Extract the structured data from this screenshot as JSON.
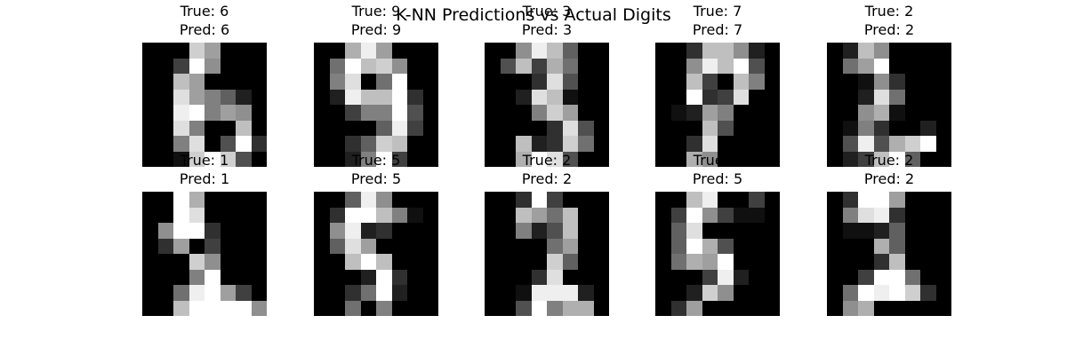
{
  "chart_data": {
    "type": "heatmap",
    "title": "K-NN Predictions vs Actual Digits",
    "colormap": "gray",
    "value_range": [
      0,
      16
    ],
    "grid": false,
    "layout": "2 rows x 5 columns",
    "panels": [
      {
        "true_label": "True: 6",
        "pred_label": "Pred: 6",
        "pixels": [
          [
            0,
            0,
            0,
            13,
            10,
            0,
            0,
            0
          ],
          [
            0,
            0,
            4,
            16,
            9,
            0,
            0,
            0
          ],
          [
            0,
            0,
            12,
            10,
            0,
            0,
            0,
            0
          ],
          [
            0,
            0,
            14,
            10,
            8,
            6,
            2,
            0
          ],
          [
            0,
            0,
            15,
            16,
            8,
            10,
            9,
            0
          ],
          [
            0,
            0,
            14,
            8,
            0,
            0,
            12,
            0
          ],
          [
            0,
            0,
            8,
            14,
            0,
            5,
            16,
            3
          ],
          [
            0,
            0,
            1,
            13,
            16,
            13,
            5,
            0
          ]
        ]
      },
      {
        "true_label": "True: 9",
        "pred_label": "Pred: 9",
        "pixels": [
          [
            0,
            0,
            11,
            15,
            10,
            0,
            0,
            0
          ],
          [
            0,
            7,
            16,
            12,
            13,
            9,
            0,
            0
          ],
          [
            0,
            8,
            14,
            0,
            7,
            16,
            0,
            0
          ],
          [
            0,
            2,
            15,
            12,
            12,
            16,
            3,
            0
          ],
          [
            0,
            0,
            4,
            8,
            8,
            16,
            5,
            0
          ],
          [
            0,
            0,
            0,
            0,
            6,
            15,
            4,
            0
          ],
          [
            0,
            0,
            3,
            6,
            13,
            12,
            0,
            0
          ],
          [
            0,
            0,
            2,
            8,
            16,
            4,
            0,
            0
          ]
        ]
      },
      {
        "true_label": "True: 3",
        "pred_label": "Pred: 3",
        "pixels": [
          [
            0,
            0,
            9,
            15,
            12,
            6,
            0,
            0
          ],
          [
            0,
            5,
            12,
            4,
            11,
            7,
            0,
            0
          ],
          [
            0,
            0,
            0,
            3,
            14,
            5,
            0,
            0
          ],
          [
            0,
            0,
            2,
            14,
            12,
            1,
            0,
            0
          ],
          [
            0,
            0,
            0,
            8,
            13,
            10,
            0,
            0
          ],
          [
            0,
            0,
            0,
            0,
            3,
            14,
            5,
            0
          ],
          [
            0,
            0,
            12,
            2,
            3,
            13,
            7,
            0
          ],
          [
            0,
            0,
            11,
            16,
            14,
            5,
            0,
            0
          ]
        ]
      },
      {
        "true_label": "True: 7",
        "pred_label": "Pred: 7",
        "pixels": [
          [
            0,
            0,
            3,
            12,
            12,
            9,
            2,
            0
          ],
          [
            0,
            0,
            9,
            15,
            12,
            16,
            5,
            0
          ],
          [
            0,
            0,
            12,
            4,
            0,
            12,
            8,
            0
          ],
          [
            0,
            0,
            16,
            3,
            4,
            14,
            0,
            0
          ],
          [
            0,
            1,
            2,
            10,
            8,
            0,
            0,
            0
          ],
          [
            0,
            0,
            0,
            12,
            5,
            0,
            0,
            0
          ],
          [
            0,
            0,
            3,
            14,
            0,
            0,
            0,
            0
          ],
          [
            0,
            0,
            11,
            9,
            0,
            0,
            0,
            0
          ]
        ]
      },
      {
        "true_label": "True: 2",
        "pred_label": "Pred: 2",
        "pixels": [
          [
            0,
            2,
            12,
            9,
            0,
            0,
            0,
            0
          ],
          [
            0,
            7,
            10,
            16,
            0,
            0,
            0,
            0
          ],
          [
            0,
            0,
            1,
            9,
            3,
            0,
            0,
            0
          ],
          [
            0,
            0,
            2,
            14,
            7,
            0,
            0,
            0
          ],
          [
            0,
            0,
            9,
            11,
            1,
            0,
            0,
            0
          ],
          [
            0,
            1,
            8,
            3,
            0,
            0,
            2,
            0
          ],
          [
            0,
            5,
            15,
            5,
            11,
            13,
            16,
            0
          ],
          [
            0,
            2,
            4,
            12,
            16,
            6,
            0,
            0
          ]
        ]
      },
      {
        "true_label": "True: 1",
        "pred_label": "Pred: 1",
        "pixels": [
          [
            0,
            0,
            16,
            11,
            0,
            0,
            0,
            0
          ],
          [
            0,
            0,
            16,
            14,
            0,
            0,
            0,
            0
          ],
          [
            0,
            9,
            16,
            16,
            3,
            0,
            0,
            0
          ],
          [
            0,
            3,
            10,
            0,
            4,
            0,
            0,
            0
          ],
          [
            0,
            0,
            0,
            13,
            9,
            0,
            0,
            0
          ],
          [
            0,
            0,
            0,
            8,
            16,
            0,
            0,
            0
          ],
          [
            0,
            0,
            7,
            15,
            16,
            10,
            4,
            0
          ],
          [
            0,
            0,
            12,
            16,
            16,
            16,
            16,
            9
          ]
        ]
      },
      {
        "true_label": "True: 5",
        "pred_label": "Pred: 5",
        "pixels": [
          [
            0,
            0,
            6,
            15,
            9,
            0,
            0,
            0
          ],
          [
            0,
            3,
            16,
            16,
            12,
            8,
            1,
            0
          ],
          [
            0,
            9,
            15,
            2,
            3,
            0,
            0,
            0
          ],
          [
            0,
            6,
            14,
            10,
            0,
            0,
            0,
            0
          ],
          [
            0,
            0,
            12,
            16,
            12,
            0,
            0,
            0
          ],
          [
            0,
            0,
            0,
            2,
            16,
            3,
            0,
            0
          ],
          [
            0,
            0,
            3,
            7,
            16,
            2,
            0,
            0
          ],
          [
            0,
            0,
            7,
            0,
            8,
            0,
            0,
            0
          ]
        ]
      },
      {
        "true_label": "True: 2",
        "pred_label": "Pred: 2",
        "pixels": [
          [
            0,
            0,
            3,
            16,
            4,
            0,
            0,
            0
          ],
          [
            0,
            0,
            12,
            10,
            7,
            12,
            0,
            0
          ],
          [
            0,
            0,
            8,
            2,
            5,
            12,
            0,
            0
          ],
          [
            0,
            0,
            0,
            0,
            7,
            10,
            0,
            0
          ],
          [
            0,
            0,
            0,
            0,
            13,
            6,
            0,
            0
          ],
          [
            0,
            0,
            0,
            3,
            14,
            0,
            0,
            0
          ],
          [
            0,
            0,
            1,
            15,
            15,
            15,
            2,
            0
          ],
          [
            0,
            0,
            5,
            16,
            8,
            11,
            11,
            0
          ]
        ]
      },
      {
        "true_label": "True: 5",
        "pred_label": "Pred: 5",
        "pixels": [
          [
            0,
            0,
            12,
            15,
            0,
            0,
            4,
            0
          ],
          [
            0,
            4,
            16,
            9,
            4,
            1,
            1,
            0
          ],
          [
            0,
            6,
            14,
            0,
            0,
            0,
            0,
            0
          ],
          [
            0,
            6,
            16,
            11,
            5,
            0,
            0,
            0
          ],
          [
            0,
            7,
            11,
            10,
            16,
            0,
            0,
            0
          ],
          [
            0,
            0,
            0,
            4,
            15,
            2,
            0,
            0
          ],
          [
            0,
            0,
            2,
            13,
            9,
            0,
            0,
            0
          ],
          [
            0,
            3,
            10,
            0,
            0,
            0,
            0,
            0
          ]
        ]
      },
      {
        "true_label": "True: 2",
        "pred_label": "Pred: 2",
        "pixels": [
          [
            0,
            3,
            16,
            16,
            10,
            0,
            0,
            0
          ],
          [
            0,
            8,
            14,
            15,
            3,
            0,
            0,
            0
          ],
          [
            0,
            1,
            1,
            2,
            6,
            0,
            0,
            0
          ],
          [
            0,
            0,
            0,
            11,
            6,
            0,
            0,
            0
          ],
          [
            0,
            0,
            0,
            3,
            12,
            0,
            0,
            0
          ],
          [
            0,
            0,
            4,
            16,
            16,
            7,
            0,
            0
          ],
          [
            0,
            7,
            16,
            15,
            16,
            13,
            3,
            0
          ],
          [
            0,
            9,
            11,
            0,
            0,
            0,
            0,
            0
          ]
        ]
      }
    ]
  }
}
